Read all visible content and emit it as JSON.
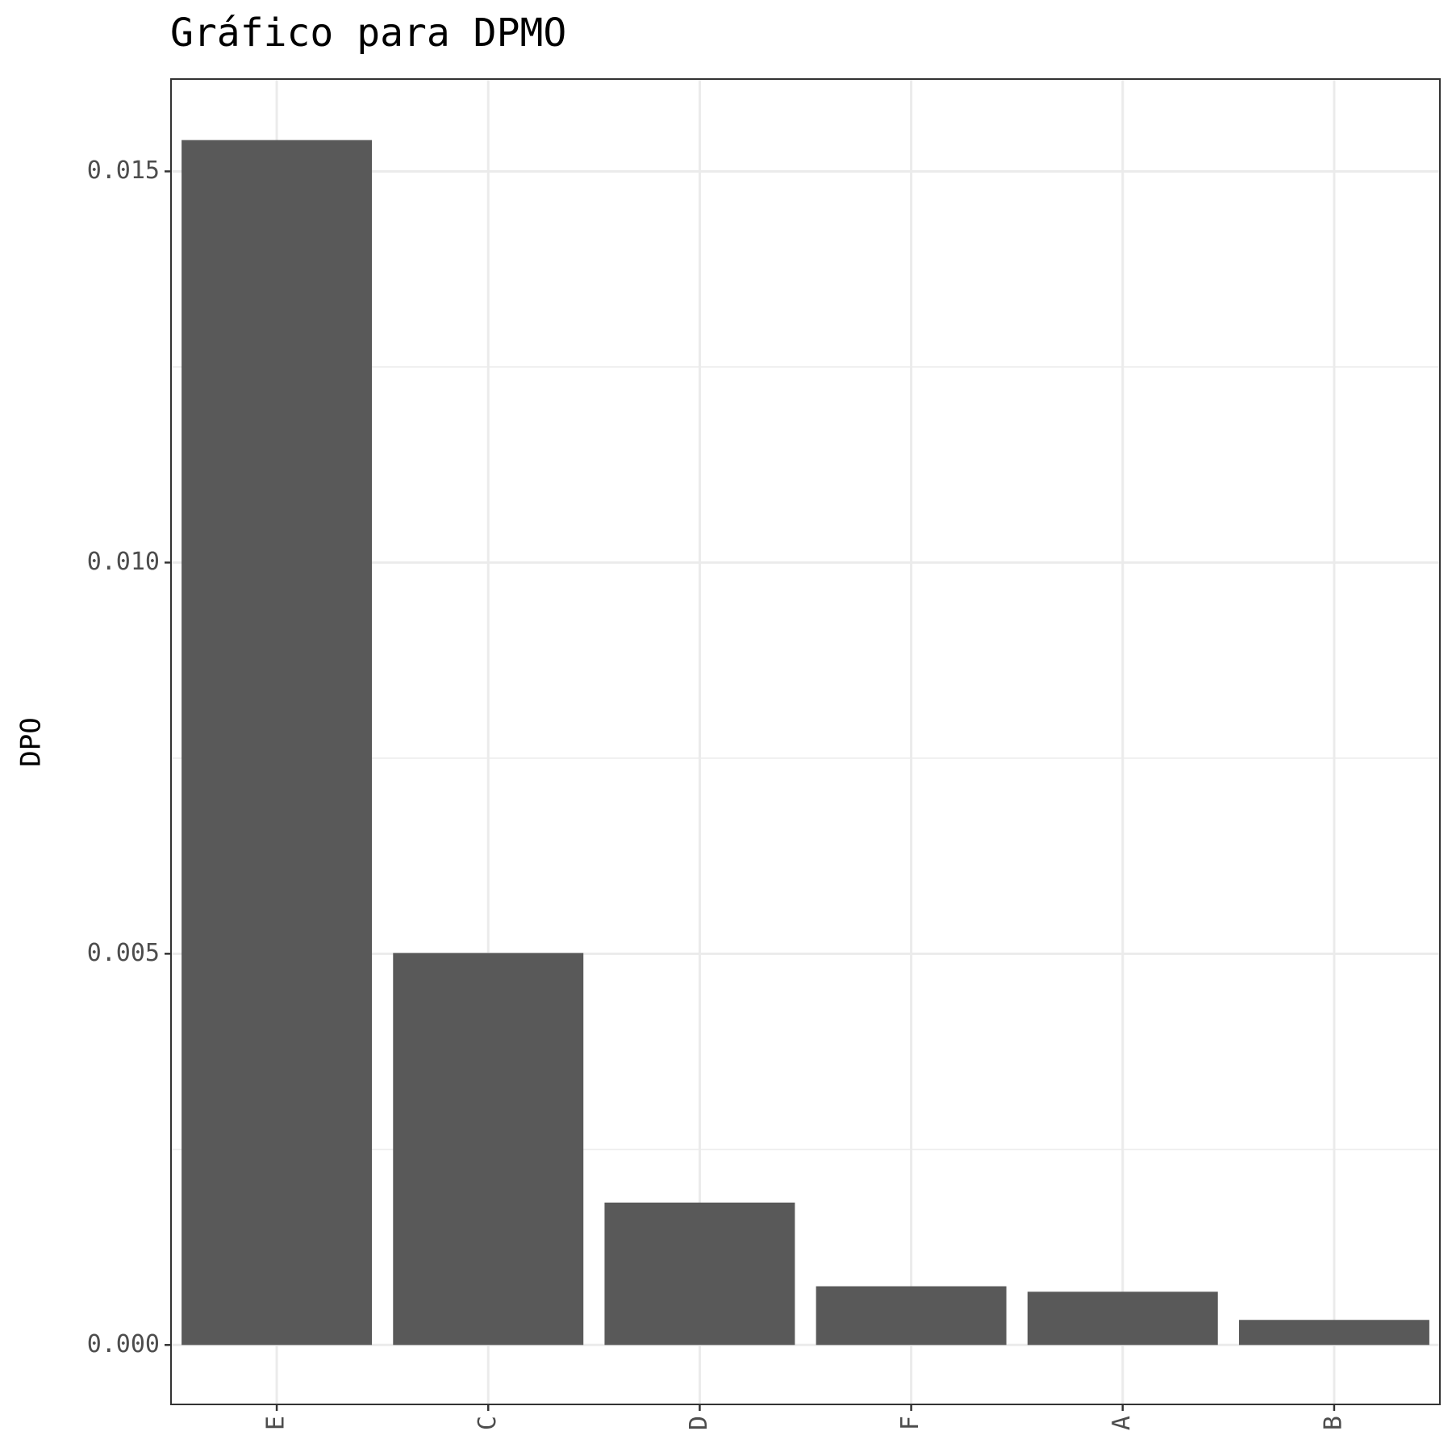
{
  "chart_data": {
    "type": "bar",
    "title": "Gráfico para DPMO",
    "y_label": "DPO",
    "categories": [
      "E",
      "C",
      "D",
      "F",
      "A",
      "B"
    ],
    "values": [
      0.0154,
      0.00501,
      0.00182,
      0.00075,
      0.00068,
      0.00032
    ],
    "color": "#595959",
    "ylim": [
      -0.00076,
      0.01618
    ],
    "yticks": [
      {
        "value": 0,
        "label": "0.000"
      },
      {
        "value": 0.005,
        "label": "0.005"
      },
      {
        "value": 0.01,
        "label": "0.010"
      },
      {
        "value": 0.015,
        "label": "0.015"
      }
    ],
    "grid": true
  }
}
